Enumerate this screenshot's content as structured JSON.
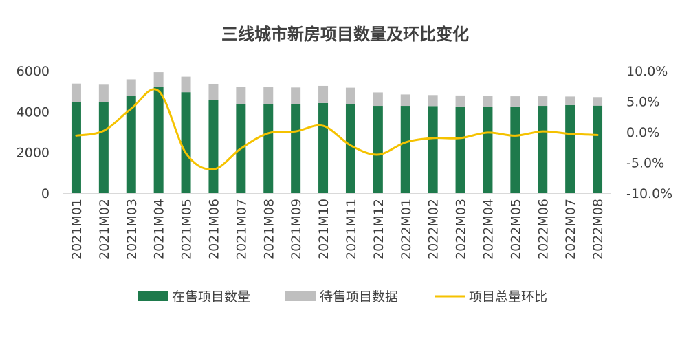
{
  "chart_data": {
    "type": "bar",
    "title": "三线城市新房项目数量及环比变化",
    "categories": [
      "2021M01",
      "2021M02",
      "2021M03",
      "2021M04",
      "2021M05",
      "2021M06",
      "2021M07",
      "2021M08",
      "2021M09",
      "2021M10",
      "2021M11",
      "2021M12",
      "2022M01",
      "2022M02",
      "2022M03",
      "2022M04",
      "2022M05",
      "2022M06",
      "2022M07",
      "2022M08"
    ],
    "series": [
      {
        "name": "在售项目数量",
        "type": "bar",
        "axis": "left",
        "color": "#1e7a4c",
        "values": [
          4450,
          4450,
          4780,
          5200,
          4950,
          4560,
          4370,
          4360,
          4370,
          4420,
          4370,
          4280,
          4280,
          4270,
          4250,
          4240,
          4250,
          4280,
          4320,
          4290
        ]
      },
      {
        "name": "待售项目数据",
        "type": "bar-stacked",
        "axis": "left",
        "color": "#bfbfbf",
        "values": [
          920,
          900,
          800,
          730,
          760,
          800,
          850,
          830,
          810,
          840,
          800,
          660,
          560,
          540,
          540,
          540,
          500,
          470,
          420,
          420
        ]
      },
      {
        "name": "项目总量环比",
        "type": "line",
        "axis": "right",
        "color": "#f5c200",
        "values": [
          -0.6,
          0.2,
          3.8,
          6.7,
          -3.5,
          -6.1,
          -2.7,
          -0.2,
          0.1,
          1.0,
          -2.2,
          -3.7,
          -1.7,
          -1.0,
          -1.0,
          -0.1,
          -0.6,
          0.1,
          -0.3,
          -0.5
        ]
      }
    ],
    "left_axis": {
      "min": 0,
      "max": 6000,
      "ticks": [
        "0",
        "2000",
        "4000",
        "6000"
      ]
    },
    "right_axis": {
      "min": -10,
      "max": 10,
      "ticks": [
        "10.0%",
        "5.0%",
        "0.0%",
        "-5.0%",
        "-10.0%"
      ]
    },
    "legend_position": "bottom",
    "grid": false
  }
}
